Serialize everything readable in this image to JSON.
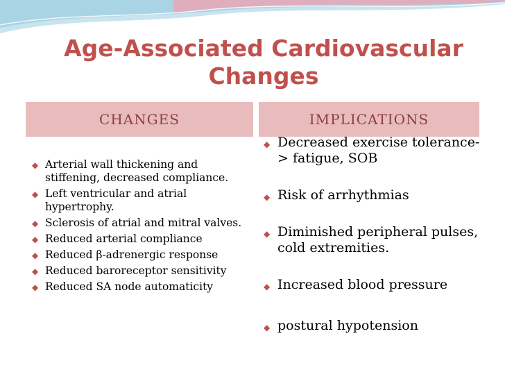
{
  "slide": {
    "title_line1": "Age-Associated Cardiovascular",
    "title_line2": "Changes"
  },
  "headers": {
    "changes": "CHANGES",
    "implications": "IMPLICATIONS"
  },
  "changes": [
    "Arterial wall thickening and stiffening, decreased compliance.",
    "Left ventricular and atrial hypertrophy.",
    "Sclerosis of atrial and mitral valves.",
    "Reduced arterial compliance",
    "Reduced β-adrenergic response",
    "Reduced baroreceptor sensitivity",
    "Reduced SA node automaticity"
  ],
  "implications": [
    "Decreased exercise tolerance-> fatigue, SOB",
    "Risk of arrhythmias",
    "Diminished peripheral pulses, cold extremities.",
    "Increased blood pressure",
    "postural hypotension"
  ],
  "colors": {
    "accent": "#c0504d",
    "header_bg": "#e8bcbd",
    "header_text": "#8c3f3d",
    "wave_blue": "#a9d4e3",
    "wave_pink": "#e9a6b4"
  }
}
